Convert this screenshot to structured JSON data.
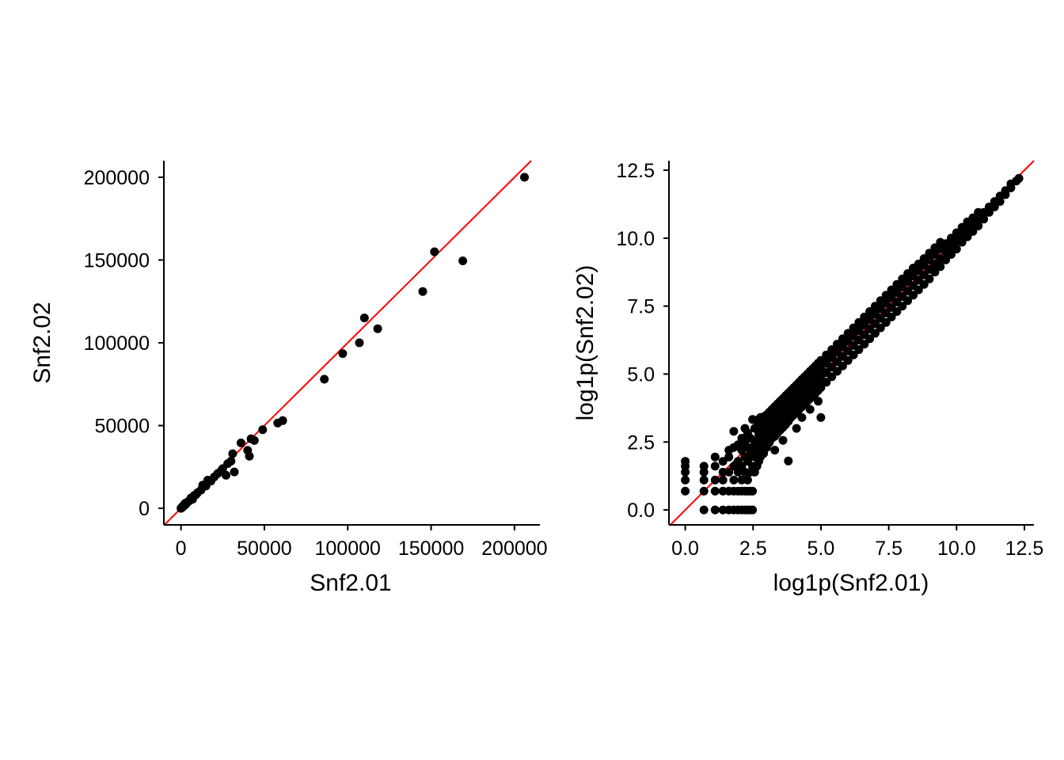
{
  "colors": {
    "points": "#000000",
    "identity_line": "#ff0000",
    "axis": "#000000",
    "background": "#ffffff"
  },
  "chart_data": [
    {
      "type": "scatter",
      "xlabel": "Snf2.01",
      "ylabel": "Snf2.02",
      "xlim": [
        -10250,
        215250
      ],
      "ylim": [
        -10000,
        210000
      ],
      "xticks": [
        0,
        50000,
        100000,
        150000,
        200000
      ],
      "xtick_labels": [
        "0",
        "50000",
        "100000",
        "150000",
        "200000"
      ],
      "yticks": [
        0,
        50000,
        100000,
        150000,
        200000
      ],
      "ytick_labels": [
        "0",
        "50000",
        "100000",
        "150000",
        "200000"
      ],
      "grid": false,
      "legend": "none",
      "reference_line": {
        "type": "identity",
        "slope": 1,
        "intercept": 0,
        "color": "#ff0000"
      },
      "points": [
        [
          0,
          0
        ],
        [
          300,
          400
        ],
        [
          800,
          600
        ],
        [
          1200,
          1500
        ],
        [
          2000,
          1600
        ],
        [
          2500,
          3000
        ],
        [
          3000,
          2500
        ],
        [
          4000,
          3800
        ],
        [
          5000,
          4500
        ],
        [
          6000,
          6200
        ],
        [
          7000,
          5500
        ],
        [
          8000,
          7800
        ],
        [
          9000,
          8200
        ],
        [
          10000,
          9500
        ],
        [
          12000,
          11000
        ],
        [
          13000,
          14000
        ],
        [
          15000,
          13500
        ],
        [
          16000,
          17000
        ],
        [
          18000,
          16500
        ],
        [
          20000,
          19000
        ],
        [
          22000,
          21000
        ],
        [
          24000,
          22500
        ],
        [
          25000,
          24000
        ],
        [
          27000,
          20000
        ],
        [
          28000,
          27000
        ],
        [
          30000,
          28500
        ],
        [
          31000,
          33000
        ],
        [
          32000,
          22000
        ],
        [
          36000,
          39500
        ],
        [
          40000,
          35000
        ],
        [
          41000,
          31500
        ],
        [
          42000,
          42000
        ],
        [
          44000,
          41000
        ],
        [
          49000,
          47500
        ],
        [
          58000,
          51500
        ],
        [
          61000,
          53000
        ],
        [
          86000,
          78000
        ],
        [
          97000,
          93500
        ],
        [
          107000,
          100000
        ],
        [
          110000,
          115000
        ],
        [
          118000,
          108500
        ],
        [
          145000,
          131000
        ],
        [
          152000,
          155000
        ],
        [
          169000,
          149500
        ],
        [
          206000,
          200000
        ]
      ]
    },
    {
      "type": "scatter",
      "xlabel": "log1p(Snf2.01)",
      "ylabel": "log1p(Snf2.02)",
      "xlim": [
        -0.6,
        12.85
      ],
      "ylim": [
        -0.55,
        12.85
      ],
      "xticks": [
        0,
        2.5,
        5,
        7.5,
        10,
        12.5
      ],
      "xtick_labels": [
        "0.0",
        "2.5",
        "5.0",
        "7.5",
        "10.0",
        "12.5"
      ],
      "yticks": [
        0,
        2.5,
        5,
        7.5,
        10,
        12.5
      ],
      "ytick_labels": [
        "0.0",
        "2.5",
        "5.0",
        "7.5",
        "10.0",
        "12.5"
      ],
      "grid": false,
      "legend": "none",
      "reference_line": {
        "type": "identity",
        "slope": 1,
        "intercept": 0,
        "color": "#ff0000"
      },
      "points": [
        [
          0,
          0.69
        ],
        [
          0,
          1.1
        ],
        [
          0,
          1.39
        ],
        [
          0,
          1.61
        ],
        [
          0,
          1.79
        ],
        [
          0.69,
          0
        ],
        [
          0.69,
          0.69
        ],
        [
          0.69,
          1.1
        ],
        [
          0.69,
          1.39
        ],
        [
          0.69,
          1.61
        ],
        [
          1.1,
          0
        ],
        [
          1.1,
          0.69
        ],
        [
          1.1,
          1.1
        ],
        [
          1.1,
          1.61
        ],
        [
          1.1,
          1.95
        ],
        [
          1.39,
          0
        ],
        [
          1.39,
          0.69
        ],
        [
          1.39,
          1.1
        ],
        [
          1.39,
          1.39
        ],
        [
          1.39,
          1.79
        ],
        [
          1.61,
          0
        ],
        [
          1.61,
          0.69
        ],
        [
          1.61,
          1.39
        ],
        [
          1.61,
          1.95
        ],
        [
          1.61,
          2.2
        ],
        [
          1.79,
          0
        ],
        [
          1.79,
          0.69
        ],
        [
          1.79,
          1.1
        ],
        [
          1.79,
          1.61
        ],
        [
          1.79,
          2.3
        ],
        [
          1.79,
          2.89
        ],
        [
          1.95,
          0
        ],
        [
          1.95,
          0.69
        ],
        [
          1.95,
          1.39
        ],
        [
          1.95,
          1.79
        ],
        [
          1.95,
          2.4
        ],
        [
          2.08,
          0
        ],
        [
          2.08,
          0.69
        ],
        [
          2.08,
          1.1
        ],
        [
          2.08,
          1.61
        ],
        [
          2.08,
          2.2
        ],
        [
          2.08,
          2.64
        ],
        [
          2.2,
          0
        ],
        [
          2.2,
          0.69
        ],
        [
          2.2,
          1.39
        ],
        [
          2.2,
          1.95
        ],
        [
          2.2,
          2.48
        ],
        [
          2.2,
          3.0
        ],
        [
          2.3,
          0
        ],
        [
          2.3,
          0.69
        ],
        [
          2.3,
          1.1
        ],
        [
          2.3,
          1.79
        ],
        [
          2.3,
          2.3
        ],
        [
          2.3,
          2.83
        ],
        [
          2.4,
          0
        ],
        [
          2.4,
          0.69
        ],
        [
          2.4,
          1.39
        ],
        [
          2.4,
          2.08
        ],
        [
          2.4,
          2.64
        ],
        [
          2.48,
          0
        ],
        [
          2.48,
          0.69
        ],
        [
          2.48,
          1.61
        ],
        [
          2.48,
          2.2
        ],
        [
          2.48,
          3.33
        ],
        [
          2.56,
          1.39
        ],
        [
          2.56,
          1.95
        ],
        [
          2.56,
          2.4
        ],
        [
          2.56,
          3.0
        ],
        [
          2.64,
          1.61
        ],
        [
          2.64,
          2.08
        ],
        [
          2.64,
          2.56
        ],
        [
          2.64,
          3.26
        ],
        [
          2.71,
          1.79
        ],
        [
          2.71,
          2.3
        ],
        [
          2.71,
          2.77
        ],
        [
          2.71,
          3.33
        ],
        [
          2.77,
          1.95
        ],
        [
          2.77,
          2.48
        ],
        [
          2.77,
          2.94
        ],
        [
          2.77,
          3.4
        ],
        [
          2.83,
          2.2
        ],
        [
          2.83,
          2.71
        ],
        [
          2.83,
          3.14
        ],
        [
          2.89,
          2.08
        ],
        [
          2.89,
          2.56
        ],
        [
          2.89,
          3.04
        ],
        [
          2.89,
          3.43
        ],
        [
          2.94,
          2.4
        ],
        [
          2.94,
          2.89
        ],
        [
          2.94,
          3.3
        ],
        [
          3.0,
          2.3
        ],
        [
          3.0,
          2.77
        ],
        [
          3.0,
          3.18
        ],
        [
          3.0,
          3.5
        ],
        [
          3.1,
          2.48
        ],
        [
          3.1,
          2.94
        ],
        [
          3.1,
          3.33
        ],
        [
          3.1,
          3.6
        ],
        [
          3.2,
          2.64
        ],
        [
          3.2,
          3.04
        ],
        [
          3.2,
          3.43
        ],
        [
          3.2,
          3.7
        ],
        [
          3.3,
          2.2
        ],
        [
          3.3,
          2.71
        ],
        [
          3.3,
          3.14
        ],
        [
          3.3,
          3.5
        ],
        [
          3.3,
          3.8
        ],
        [
          3.4,
          2.83
        ],
        [
          3.4,
          3.26
        ],
        [
          3.4,
          3.6
        ],
        [
          3.4,
          3.9
        ],
        [
          3.5,
          2.94
        ],
        [
          3.5,
          3.33
        ],
        [
          3.5,
          3.69
        ],
        [
          3.5,
          4.0
        ],
        [
          3.6,
          2.56
        ],
        [
          3.6,
          3.04
        ],
        [
          3.6,
          3.43
        ],
        [
          3.6,
          3.8
        ],
        [
          3.6,
          4.1
        ],
        [
          3.7,
          3.14
        ],
        [
          3.7,
          3.53
        ],
        [
          3.7,
          3.9
        ],
        [
          3.7,
          4.2
        ],
        [
          3.8,
          1.8
        ],
        [
          3.8,
          3.26
        ],
        [
          3.8,
          3.64
        ],
        [
          3.8,
          4.0
        ],
        [
          3.8,
          4.3
        ],
        [
          3.9,
          3.4
        ],
        [
          3.9,
          3.74
        ],
        [
          3.9,
          4.1
        ],
        [
          3.9,
          4.4
        ],
        [
          4.0,
          3.5
        ],
        [
          4.0,
          3.84
        ],
        [
          4.0,
          4.2
        ],
        [
          4.0,
          4.5
        ],
        [
          4.1,
          3.0
        ],
        [
          4.1,
          3.6
        ],
        [
          4.1,
          3.95
        ],
        [
          4.1,
          4.3
        ],
        [
          4.1,
          4.6
        ],
        [
          4.2,
          3.7
        ],
        [
          4.2,
          4.05
        ],
        [
          4.2,
          4.4
        ],
        [
          4.2,
          4.7
        ],
        [
          4.3,
          3.4
        ],
        [
          4.3,
          3.8
        ],
        [
          4.3,
          4.15
        ],
        [
          4.3,
          4.5
        ],
        [
          4.3,
          4.8
        ],
        [
          4.4,
          3.9
        ],
        [
          4.4,
          4.25
        ],
        [
          4.4,
          4.6
        ],
        [
          4.4,
          4.9
        ],
        [
          4.5,
          4.0
        ],
        [
          4.5,
          4.35
        ],
        [
          4.5,
          4.7
        ],
        [
          4.5,
          5.0
        ],
        [
          4.6,
          3.7
        ],
        [
          4.6,
          4.1
        ],
        [
          4.6,
          4.45
        ],
        [
          4.6,
          4.8
        ],
        [
          4.6,
          5.1
        ],
        [
          4.7,
          4.2
        ],
        [
          4.7,
          4.55
        ],
        [
          4.7,
          4.9
        ],
        [
          4.7,
          5.2
        ],
        [
          4.8,
          4.3
        ],
        [
          4.8,
          4.65
        ],
        [
          4.8,
          5.0
        ],
        [
          4.8,
          5.3
        ],
        [
          4.9,
          4.0
        ],
        [
          4.9,
          4.4
        ],
        [
          4.9,
          4.75
        ],
        [
          4.9,
          5.1
        ],
        [
          4.9,
          5.4
        ],
        [
          5.0,
          3.4
        ],
        [
          5.0,
          4.5
        ],
        [
          5.0,
          4.85
        ],
        [
          5.0,
          5.2
        ],
        [
          5.0,
          5.5
        ],
        [
          5.2,
          4.7
        ],
        [
          5.2,
          5.05
        ],
        [
          5.2,
          5.4
        ],
        [
          5.2,
          5.7
        ],
        [
          5.4,
          4.9
        ],
        [
          5.4,
          5.25
        ],
        [
          5.4,
          5.6
        ],
        [
          5.4,
          5.9
        ],
        [
          5.6,
          5.1
        ],
        [
          5.6,
          5.45
        ],
        [
          5.6,
          5.8
        ],
        [
          5.6,
          6.1
        ],
        [
          5.8,
          5.3
        ],
        [
          5.8,
          5.65
        ],
        [
          5.8,
          6.0
        ],
        [
          5.8,
          6.3
        ],
        [
          6.0,
          5.5
        ],
        [
          6.0,
          5.85
        ],
        [
          6.0,
          6.2
        ],
        [
          6.0,
          6.5
        ],
        [
          6.2,
          5.7
        ],
        [
          6.2,
          6.05
        ],
        [
          6.2,
          6.4
        ],
        [
          6.2,
          6.7
        ],
        [
          6.4,
          5.9
        ],
        [
          6.4,
          6.25
        ],
        [
          6.4,
          6.6
        ],
        [
          6.4,
          6.9
        ],
        [
          6.6,
          6.1
        ],
        [
          6.6,
          6.45
        ],
        [
          6.6,
          6.8
        ],
        [
          6.6,
          7.1
        ],
        [
          6.8,
          6.3
        ],
        [
          6.8,
          6.65
        ],
        [
          6.8,
          7.0
        ],
        [
          6.8,
          7.3
        ],
        [
          7.0,
          6.5
        ],
        [
          7.0,
          6.85
        ],
        [
          7.0,
          7.2
        ],
        [
          7.0,
          7.5
        ],
        [
          7.2,
          6.7
        ],
        [
          7.2,
          7.05
        ],
        [
          7.2,
          7.4
        ],
        [
          7.2,
          7.7
        ],
        [
          7.4,
          6.9
        ],
        [
          7.4,
          7.25
        ],
        [
          7.4,
          7.6
        ],
        [
          7.4,
          7.9
        ],
        [
          7.6,
          7.1
        ],
        [
          7.6,
          7.45
        ],
        [
          7.6,
          7.8
        ],
        [
          7.6,
          8.1
        ],
        [
          7.8,
          7.3
        ],
        [
          7.8,
          7.65
        ],
        [
          7.8,
          8.0
        ],
        [
          7.8,
          8.3
        ],
        [
          8.0,
          7.5
        ],
        [
          8.0,
          7.85
        ],
        [
          8.0,
          8.2
        ],
        [
          8.0,
          8.5
        ],
        [
          8.2,
          7.7
        ],
        [
          8.2,
          8.05
        ],
        [
          8.2,
          8.4
        ],
        [
          8.2,
          8.7
        ],
        [
          8.4,
          7.9
        ],
        [
          8.4,
          8.25
        ],
        [
          8.4,
          8.6
        ],
        [
          8.4,
          8.9
        ],
        [
          8.6,
          8.1
        ],
        [
          8.6,
          8.45
        ],
        [
          8.6,
          8.8
        ],
        [
          8.6,
          9.05
        ],
        [
          8.8,
          8.3
        ],
        [
          8.8,
          8.65
        ],
        [
          8.8,
          9.0
        ],
        [
          8.8,
          9.25
        ],
        [
          9.0,
          8.5
        ],
        [
          9.0,
          8.85
        ],
        [
          9.0,
          9.2
        ],
        [
          9.0,
          9.45
        ],
        [
          9.2,
          8.75
        ],
        [
          9.2,
          9.05
        ],
        [
          9.2,
          9.4
        ],
        [
          9.2,
          9.65
        ],
        [
          9.4,
          8.95
        ],
        [
          9.4,
          9.25
        ],
        [
          9.4,
          9.6
        ],
        [
          9.4,
          9.85
        ],
        [
          9.6,
          9.2
        ],
        [
          9.6,
          9.5
        ],
        [
          9.6,
          9.8
        ],
        [
          9.8,
          9.4
        ],
        [
          9.8,
          9.7
        ],
        [
          9.8,
          10.0
        ],
        [
          10.0,
          9.6
        ],
        [
          10.0,
          9.9
        ],
        [
          10.0,
          10.2
        ],
        [
          10.2,
          9.85
        ],
        [
          10.2,
          10.1
        ],
        [
          10.2,
          10.4
        ],
        [
          10.4,
          10.05
        ],
        [
          10.4,
          10.3
        ],
        [
          10.4,
          10.6
        ],
        [
          10.6,
          10.25
        ],
        [
          10.6,
          10.5
        ],
        [
          10.6,
          10.75
        ],
        [
          10.8,
          10.45
        ],
        [
          10.8,
          10.7
        ],
        [
          10.8,
          10.95
        ],
        [
          11.0,
          10.7
        ],
        [
          11.0,
          10.95
        ],
        [
          11.2,
          10.95
        ],
        [
          11.2,
          11.15
        ],
        [
          11.4,
          11.15
        ],
        [
          11.4,
          11.35
        ],
        [
          11.6,
          11.35
        ],
        [
          11.6,
          11.55
        ],
        [
          11.8,
          11.6
        ],
        [
          11.8,
          11.75
        ],
        [
          12.0,
          11.85
        ],
        [
          12.0,
          12.0
        ],
        [
          12.2,
          12.1
        ],
        [
          12.3,
          12.2
        ]
      ]
    }
  ]
}
